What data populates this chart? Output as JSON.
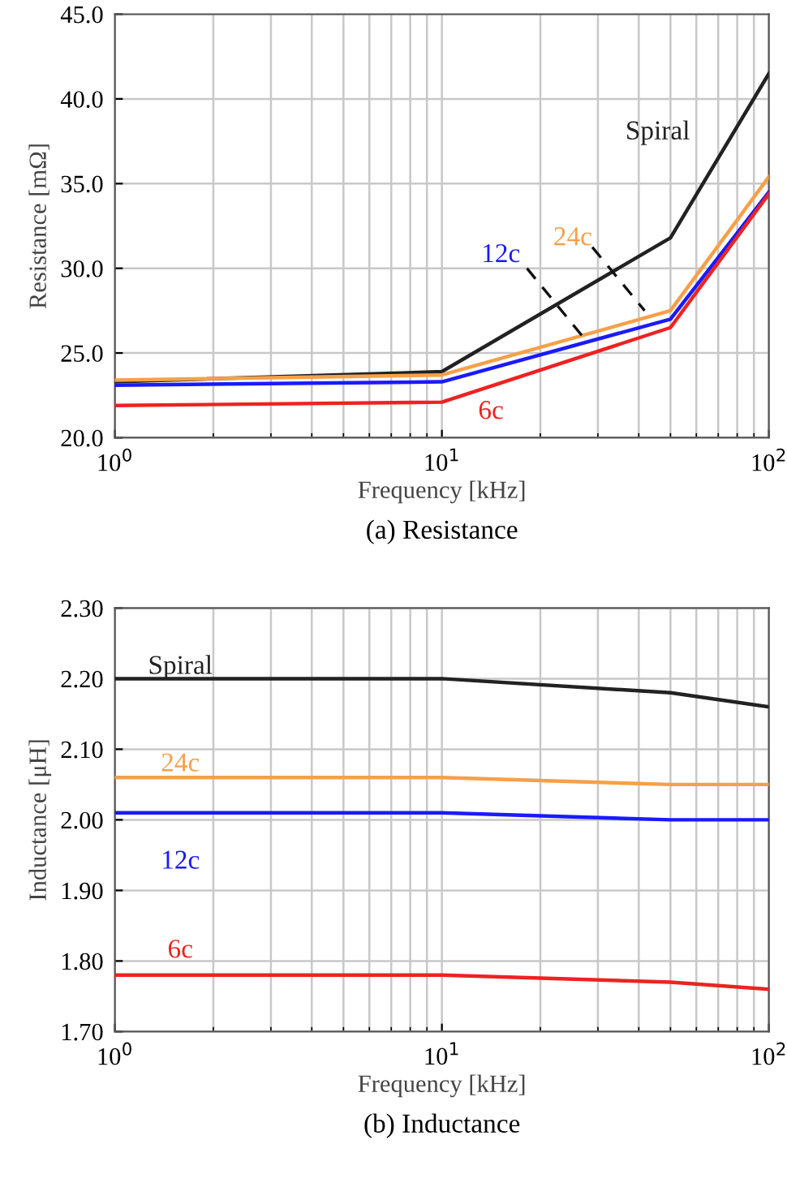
{
  "chart_data": [
    {
      "type": "line",
      "title": "(a) Resistance",
      "xlabel": "Frequency [kHz]",
      "ylabel": "Resistance [mΩ]",
      "log": "x",
      "grid": true,
      "legend": false,
      "marker": "none",
      "line_style": "solid",
      "x": [
        1,
        10,
        50,
        100
      ],
      "xlim": [
        1,
        100
      ],
      "xticks": [
        {
          "value": 1,
          "label": "10$^{0}$"
        },
        {
          "value": 10,
          "label": "10$^{1}$"
        },
        {
          "value": 100,
          "label": "10$^{2}$"
        }
      ],
      "ylim": [
        20,
        45
      ],
      "yticks": [
        {
          "value": 20,
          "label": "20.0"
        },
        {
          "value": 25,
          "label": "25.0"
        },
        {
          "value": 30,
          "label": "30.0"
        },
        {
          "value": 35,
          "label": "35.0"
        },
        {
          "value": 40,
          "label": "40.0"
        },
        {
          "value": 45,
          "label": "45.0"
        }
      ],
      "series": [
        {
          "name": "Spiral",
          "color": "#222222",
          "values": [
            23.3,
            23.9,
            31.8,
            41.5
          ]
        },
        {
          "name": "24c",
          "color": "#f5a04a",
          "values": [
            23.4,
            23.7,
            27.5,
            35.4
          ]
        },
        {
          "name": "12c",
          "color": "#1a1aff",
          "values": [
            23.1,
            23.3,
            27.0,
            34.5
          ]
        },
        {
          "name": "6c",
          "color": "#ee2222",
          "values": [
            21.9,
            22.1,
            26.5,
            34.4
          ]
        }
      ]
    },
    {
      "type": "line",
      "title": "(b) Inductance",
      "xlabel": "Frequency [kHz]",
      "ylabel": "Inductance [μH]",
      "log": "x",
      "grid": true,
      "legend": false,
      "marker": "none",
      "line_style": "solid",
      "x": [
        1,
        10,
        50,
        100
      ],
      "xlim": [
        1,
        100
      ],
      "xticks": [
        {
          "value": 1,
          "label": "10$^{0}$"
        },
        {
          "value": 10,
          "label": "10$^{1}$"
        },
        {
          "value": 100,
          "label": "10$^{2}$"
        }
      ],
      "ylim": [
        1.7,
        2.3
      ],
      "yticks": [
        {
          "value": 1.7,
          "label": "1.70"
        },
        {
          "value": 1.8,
          "label": "1.80"
        },
        {
          "value": 1.9,
          "label": "1.90"
        },
        {
          "value": 2.0,
          "label": "2.00"
        },
        {
          "value": 2.1,
          "label": "2.10"
        },
        {
          "value": 2.2,
          "label": "2.20"
        },
        {
          "value": 2.3,
          "label": "2.30"
        }
      ],
      "series": [
        {
          "name": "Spiral",
          "color": "#222222",
          "values": [
            2.2,
            2.2,
            2.18,
            2.16
          ]
        },
        {
          "name": "24c",
          "color": "#f5a04a",
          "values": [
            2.06,
            2.06,
            2.05,
            2.05
          ]
        },
        {
          "name": "12c",
          "color": "#1a1aff",
          "values": [
            2.01,
            2.01,
            2.0,
            2.0
          ]
        },
        {
          "name": "6c",
          "color": "#ee2222",
          "values": [
            1.78,
            1.78,
            1.77,
            1.76
          ]
        }
      ]
    }
  ]
}
